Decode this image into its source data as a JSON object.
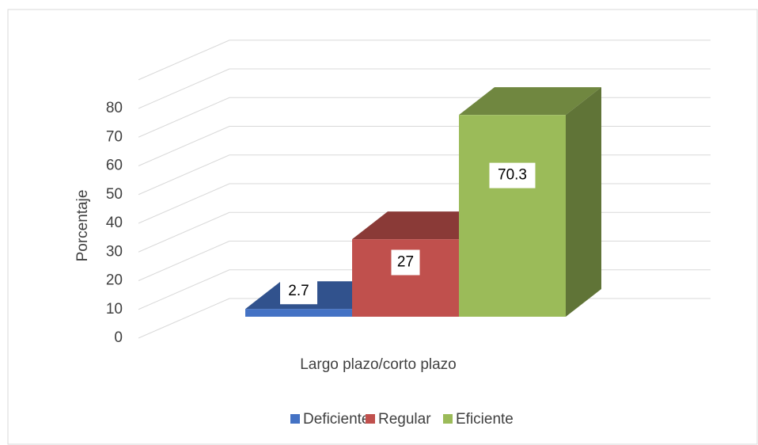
{
  "chart_data": {
    "type": "bar3d",
    "categories": [
      "Largo plazo/corto plazo"
    ],
    "series": [
      {
        "name": "Deficiente",
        "color": "#4472c4",
        "values": [
          2.7
        ]
      },
      {
        "name": "Regular",
        "color": "#c0504d",
        "values": [
          27
        ]
      },
      {
        "name": "Eficiente",
        "color": "#9bbb59",
        "values": [
          70.3
        ]
      }
    ],
    "y_label": "Porcentaje",
    "ylim": [
      0,
      90
    ],
    "yticks": [
      0,
      10,
      20,
      30,
      40,
      50,
      60,
      70,
      80
    ],
    "grid": true,
    "legend": "bottom"
  }
}
